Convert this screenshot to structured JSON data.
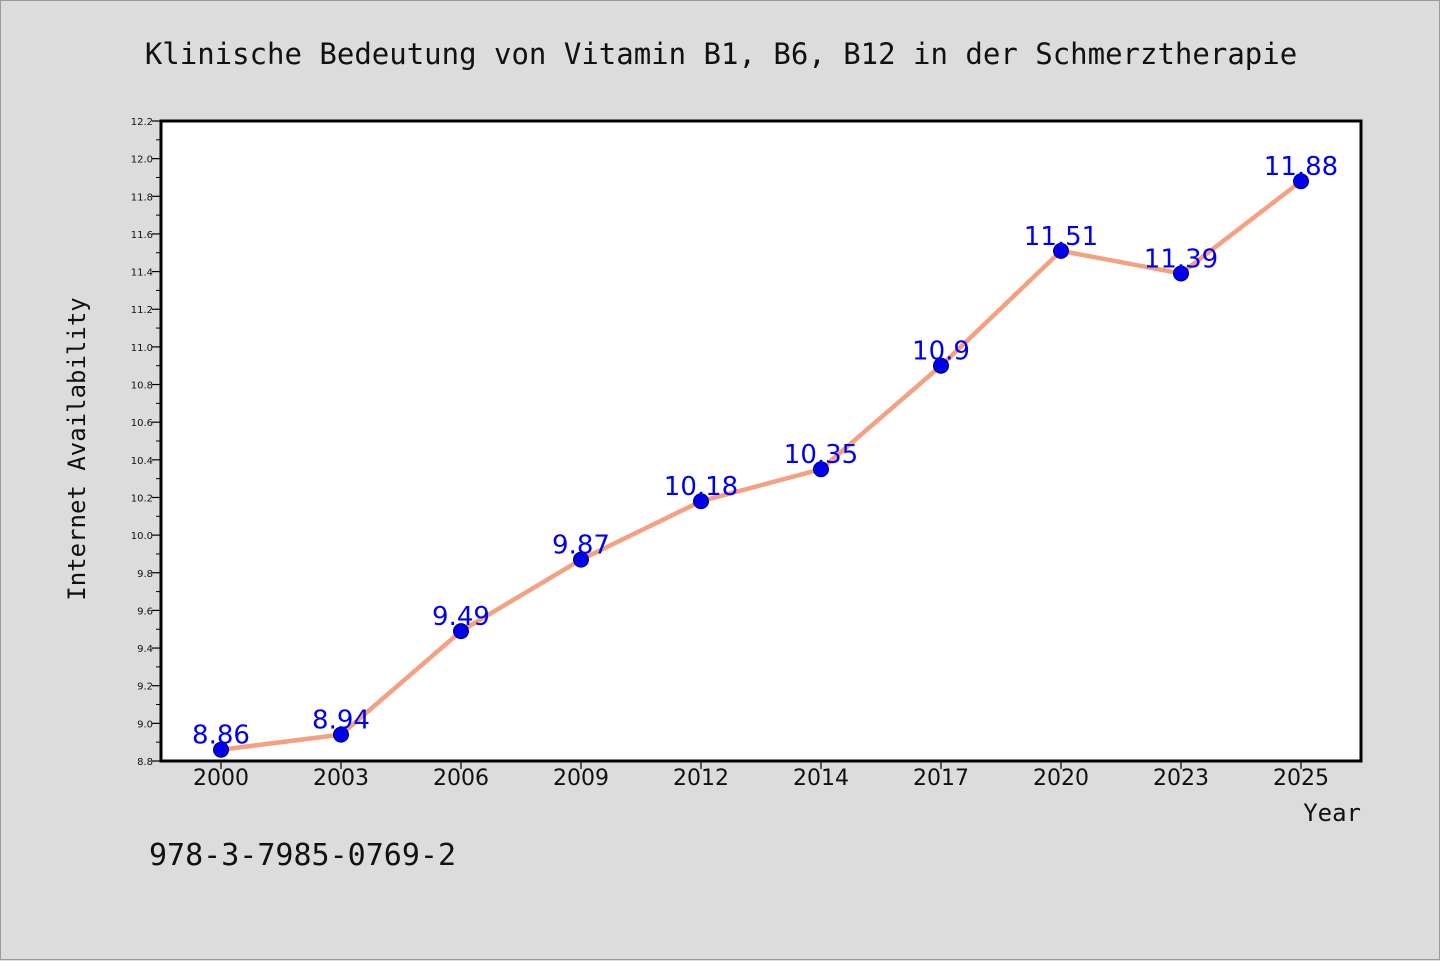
{
  "footer_text": "978-3-7985-0769-2",
  "colors": {
    "background": "#dcdcdc",
    "plot_background": "#ffffff",
    "line": "#f4a081",
    "marker_fill": "#0000ee",
    "marker_edge": "#000066",
    "data_label": "#0000ee",
    "axis": "#000000"
  },
  "chart_data": {
    "type": "line",
    "title": "Klinische Bedeutung von Vitamin B1, B6, B12 in der Schmerztherapie",
    "xlabel": "Year",
    "ylabel": "Internet Availability",
    "categories": [
      "2000",
      "2003",
      "2006",
      "2009",
      "2012",
      "2014",
      "2017",
      "2020",
      "2023",
      "2025"
    ],
    "series": [
      {
        "values": [
          8.86,
          8.94,
          9.49,
          9.87,
          10.18,
          10.35,
          10.9,
          11.51,
          11.39,
          11.88
        ],
        "data_labels": [
          "8.86",
          "8.94",
          "9.49",
          "9.87",
          "10.18",
          "10.35",
          "10.9",
          "11.51",
          "11.39",
          "11.88"
        ]
      }
    ],
    "ylim": [
      8.8,
      12.2
    ],
    "yticks": [
      "8.8",
      "9.0",
      "9.2",
      "9.4",
      "9.6",
      "9.8",
      "10.0",
      "10.2",
      "10.4",
      "10.6",
      "10.8",
      "11.0",
      "11.2",
      "11.4",
      "11.6",
      "11.8",
      "12.0",
      "12.2"
    ],
    "grid": false,
    "legend": "none"
  }
}
